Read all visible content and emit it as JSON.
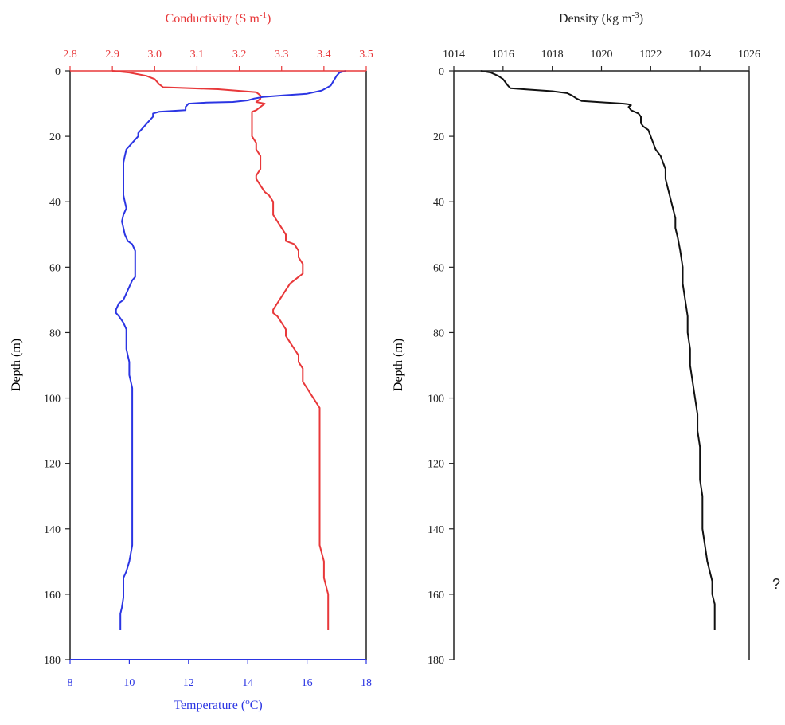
{
  "colors": {
    "conductivity": "#e8383a",
    "temperature": "#2b35e3",
    "density": "#111111",
    "axis": "#222222"
  },
  "stray_text": "?",
  "chart_data": [
    {
      "type": "line",
      "title": "",
      "ylabel": "Depth (m)",
      "ylim": [
        0,
        180
      ],
      "y_inverted": true,
      "y_ticks": [
        "0",
        "20",
        "40",
        "60",
        "80",
        "100",
        "120",
        "140",
        "160",
        "180"
      ],
      "x_top": {
        "label": "Conductivity (S m",
        "label_sup": "-1",
        "label_end": ")",
        "range": [
          2.8,
          3.5
        ],
        "ticks": [
          "2.8",
          "2.9",
          "3.0",
          "3.1",
          "3.2",
          "3.3",
          "3.4",
          "3.5"
        ]
      },
      "x_bottom": {
        "label": "Temperature (",
        "label_sup": "o",
        "label_end": "C)",
        "range": [
          8,
          18
        ],
        "ticks": [
          "8",
          "10",
          "12",
          "14",
          "16",
          "18"
        ]
      },
      "series": [
        {
          "axis": "top",
          "points": [
            [
              2.9,
              0
            ],
            [
              2.94,
              0.5
            ],
            [
              2.98,
              1.5
            ],
            [
              3.0,
              2.5
            ],
            [
              3.01,
              4
            ],
            [
              3.02,
              5
            ],
            [
              3.15,
              5.6
            ],
            [
              3.24,
              6.5
            ],
            [
              3.25,
              7.5
            ],
            [
              3.25,
              8.5
            ],
            [
              3.24,
              9.5
            ],
            [
              3.26,
              10
            ],
            [
              3.25,
              11
            ],
            [
              3.24,
              12
            ],
            [
              3.23,
              12.5
            ],
            [
              3.23,
              14
            ],
            [
              3.23,
              16
            ],
            [
              3.23,
              18
            ],
            [
              3.23,
              20
            ],
            [
              3.24,
              22
            ],
            [
              3.24,
              24
            ],
            [
              3.25,
              26
            ],
            [
              3.25,
              28
            ],
            [
              3.25,
              30
            ],
            [
              3.24,
              32
            ],
            [
              3.24,
              33
            ],
            [
              3.25,
              35
            ],
            [
              3.26,
              37
            ],
            [
              3.27,
              38
            ],
            [
              3.28,
              40
            ],
            [
              3.28,
              42
            ],
            [
              3.28,
              44
            ],
            [
              3.29,
              46
            ],
            [
              3.3,
              48
            ],
            [
              3.31,
              50
            ],
            [
              3.31,
              52
            ],
            [
              3.33,
              53
            ],
            [
              3.34,
              55
            ],
            [
              3.34,
              57
            ],
            [
              3.35,
              59
            ],
            [
              3.35,
              61
            ],
            [
              3.35,
              62
            ],
            [
              3.34,
              63
            ],
            [
              3.32,
              65
            ],
            [
              3.31,
              67
            ],
            [
              3.3,
              69
            ],
            [
              3.29,
              71
            ],
            [
              3.28,
              73
            ],
            [
              3.28,
              74
            ],
            [
              3.29,
              75
            ],
            [
              3.3,
              77
            ],
            [
              3.31,
              79
            ],
            [
              3.31,
              81
            ],
            [
              3.32,
              83
            ],
            [
              3.33,
              85
            ],
            [
              3.34,
              87
            ],
            [
              3.34,
              89
            ],
            [
              3.35,
              91
            ],
            [
              3.35,
              93
            ],
            [
              3.35,
              95
            ],
            [
              3.36,
              97
            ],
            [
              3.37,
              99
            ],
            [
              3.38,
              101
            ],
            [
              3.39,
              103
            ],
            [
              3.39,
              106
            ],
            [
              3.39,
              110
            ],
            [
              3.39,
              115
            ],
            [
              3.39,
              120
            ],
            [
              3.39,
              125
            ],
            [
              3.39,
              130
            ],
            [
              3.39,
              135
            ],
            [
              3.39,
              140
            ],
            [
              3.39,
              145
            ],
            [
              3.4,
              150
            ],
            [
              3.4,
              155
            ],
            [
              3.41,
              160
            ],
            [
              3.41,
              163
            ],
            [
              3.41,
              166
            ],
            [
              3.41,
              168
            ],
            [
              3.41,
              171
            ]
          ]
        },
        {
          "axis": "bottom",
          "points": [
            [
              17.3,
              0
            ],
            [
              17.1,
              0.5
            ],
            [
              17.0,
              1.5
            ],
            [
              16.9,
              3
            ],
            [
              16.8,
              4.5
            ],
            [
              16.5,
              6
            ],
            [
              16.0,
              7
            ],
            [
              15.2,
              7.5
            ],
            [
              14.5,
              8
            ],
            [
              14.2,
              8.5
            ],
            [
              14.0,
              9
            ],
            [
              13.5,
              9.5
            ],
            [
              12.6,
              9.7
            ],
            [
              12.0,
              10
            ],
            [
              11.9,
              11
            ],
            [
              11.9,
              12
            ],
            [
              11.0,
              12.5
            ],
            [
              10.8,
              13
            ],
            [
              10.8,
              14
            ],
            [
              10.7,
              15
            ],
            [
              10.6,
              16
            ],
            [
              10.5,
              17
            ],
            [
              10.4,
              18
            ],
            [
              10.3,
              19
            ],
            [
              10.3,
              20
            ],
            [
              10.2,
              21
            ],
            [
              10.1,
              22
            ],
            [
              10.0,
              23
            ],
            [
              9.9,
              24
            ],
            [
              9.85,
              26
            ],
            [
              9.8,
              28
            ],
            [
              9.8,
              30
            ],
            [
              9.8,
              32
            ],
            [
              9.8,
              34
            ],
            [
              9.8,
              36
            ],
            [
              9.8,
              38
            ],
            [
              9.85,
              40
            ],
            [
              9.9,
              42
            ],
            [
              9.8,
              44
            ],
            [
              9.75,
              46
            ],
            [
              9.8,
              48
            ],
            [
              9.85,
              50
            ],
            [
              9.95,
              52
            ],
            [
              10.1,
              53
            ],
            [
              10.2,
              55
            ],
            [
              10.2,
              57
            ],
            [
              10.2,
              59
            ],
            [
              10.2,
              61
            ],
            [
              10.2,
              63
            ],
            [
              10.1,
              64
            ],
            [
              10.0,
              66
            ],
            [
              9.9,
              68
            ],
            [
              9.8,
              70
            ],
            [
              9.65,
              71
            ],
            [
              9.55,
              73
            ],
            [
              9.55,
              74
            ],
            [
              9.65,
              75
            ],
            [
              9.8,
              77
            ],
            [
              9.9,
              79
            ],
            [
              9.9,
              81
            ],
            [
              9.9,
              83
            ],
            [
              9.9,
              85
            ],
            [
              9.95,
              87
            ],
            [
              10.0,
              89
            ],
            [
              10.0,
              91
            ],
            [
              10.0,
              93
            ],
            [
              10.05,
              95
            ],
            [
              10.1,
              97
            ],
            [
              10.1,
              100
            ],
            [
              10.1,
              105
            ],
            [
              10.1,
              110
            ],
            [
              10.1,
              115
            ],
            [
              10.1,
              120
            ],
            [
              10.1,
              125
            ],
            [
              10.1,
              130
            ],
            [
              10.1,
              135
            ],
            [
              10.1,
              140
            ],
            [
              10.1,
              145
            ],
            [
              10.0,
              150
            ],
            [
              9.9,
              153
            ],
            [
              9.8,
              155
            ],
            [
              9.8,
              158
            ],
            [
              9.8,
              161
            ],
            [
              9.75,
              164
            ],
            [
              9.7,
              166
            ],
            [
              9.7,
              168
            ],
            [
              9.7,
              171
            ]
          ]
        }
      ]
    },
    {
      "type": "line",
      "title": "",
      "ylabel": "Depth (m)",
      "ylim": [
        0,
        180
      ],
      "y_inverted": true,
      "y_ticks": [
        "0",
        "20",
        "40",
        "60",
        "80",
        "100",
        "120",
        "140",
        "160",
        "180"
      ],
      "x_top": {
        "label": "Density (kg m",
        "label_sup": "-3",
        "label_end": ")",
        "range": [
          1014,
          1026
        ],
        "ticks": [
          "1014",
          "1016",
          "1018",
          "1020",
          "1022",
          "1024",
          "1026"
        ]
      },
      "series": [
        {
          "axis": "top",
          "points": [
            [
              1015.1,
              0
            ],
            [
              1015.5,
              0.5
            ],
            [
              1015.8,
              1.5
            ],
            [
              1016.0,
              2.5
            ],
            [
              1016.1,
              3.5
            ],
            [
              1016.2,
              4.5
            ],
            [
              1016.3,
              5.3
            ],
            [
              1017.0,
              5.7
            ],
            [
              1018.0,
              6.2
            ],
            [
              1018.6,
              6.8
            ],
            [
              1018.8,
              7.5
            ],
            [
              1019.0,
              8.5
            ],
            [
              1019.2,
              9.2
            ],
            [
              1020.0,
              9.6
            ],
            [
              1020.9,
              10
            ],
            [
              1021.1,
              10.2
            ],
            [
              1021.2,
              10.5
            ],
            [
              1021.1,
              11
            ],
            [
              1021.2,
              12
            ],
            [
              1021.5,
              13
            ],
            [
              1021.6,
              14
            ],
            [
              1021.6,
              16
            ],
            [
              1021.7,
              17
            ],
            [
              1021.9,
              18
            ],
            [
              1022.0,
              20
            ],
            [
              1022.1,
              22
            ],
            [
              1022.2,
              24
            ],
            [
              1022.4,
              26
            ],
            [
              1022.5,
              28
            ],
            [
              1022.6,
              30
            ],
            [
              1022.6,
              33
            ],
            [
              1022.7,
              36
            ],
            [
              1022.8,
              39
            ],
            [
              1022.9,
              42
            ],
            [
              1023.0,
              45
            ],
            [
              1023.0,
              48
            ],
            [
              1023.1,
              51
            ],
            [
              1023.2,
              55
            ],
            [
              1023.3,
              60
            ],
            [
              1023.3,
              65
            ],
            [
              1023.4,
              70
            ],
            [
              1023.5,
              75
            ],
            [
              1023.5,
              80
            ],
            [
              1023.6,
              85
            ],
            [
              1023.6,
              90
            ],
            [
              1023.7,
              95
            ],
            [
              1023.8,
              100
            ],
            [
              1023.9,
              105
            ],
            [
              1023.9,
              110
            ],
            [
              1024.0,
              115
            ],
            [
              1024.0,
              120
            ],
            [
              1024.0,
              125
            ],
            [
              1024.1,
              130
            ],
            [
              1024.1,
              135
            ],
            [
              1024.1,
              140
            ],
            [
              1024.2,
              145
            ],
            [
              1024.3,
              150
            ],
            [
              1024.4,
              153
            ],
            [
              1024.5,
              156
            ],
            [
              1024.5,
              160
            ],
            [
              1024.6,
              163
            ],
            [
              1024.6,
              166
            ],
            [
              1024.6,
              168
            ],
            [
              1024.6,
              171
            ]
          ]
        }
      ]
    }
  ]
}
